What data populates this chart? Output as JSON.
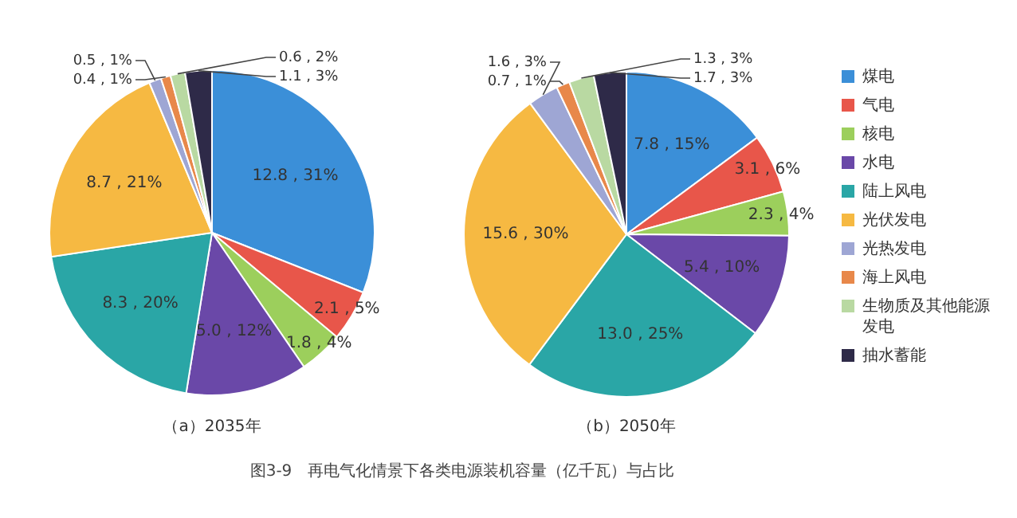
{
  "chart_data": [
    {
      "type": "pie",
      "title": "（a）2035年",
      "categories": [
        "煤电",
        "气电",
        "核电",
        "水电",
        "陆上风电",
        "光伏发电",
        "光热发电",
        "海上风电",
        "生物质及其他能源发电",
        "抽水蓄能"
      ],
      "values": [
        12.8,
        2.1,
        1.8,
        5.0,
        8.3,
        8.7,
        0.5,
        0.4,
        0.6,
        1.1
      ],
      "value_labels": [
        "12.8 , 31%",
        "2.1 , 5%",
        "1.8 , 4%",
        "5.0 , 12%",
        "8.3 , 20%",
        "8.7 , 21%",
        "0.5 , 1%",
        "0.4 , 1%",
        "0.6 , 2%",
        "1.1 , 3%"
      ],
      "colors": [
        "#3b8fd8",
        "#e8564a",
        "#9ccf5c",
        "#6a48a8",
        "#2aa6a6",
        "#f6b942",
        "#9ea6d4",
        "#e8884a",
        "#b9d9a2",
        "#2e2a48"
      ],
      "legend": "right",
      "annotations": [
        "图3-9　再电气化情景下各类电源装机容量（亿千瓦）与占比"
      ]
    },
    {
      "type": "pie",
      "title": "（b）2050年",
      "values": [
        7.8,
        3.1,
        2.3,
        5.4,
        13.0,
        15.6,
        1.6,
        0.7,
        1.3,
        1.7
      ],
      "value_labels": [
        "7.8 , 15%",
        "3.1 , 6%",
        "2.3 , 4%",
        "5.4 , 10%",
        "13.0 , 25%",
        "15.6 , 30%",
        "1.6 , 3%",
        "0.7 , 1%",
        "1.3 , 3%",
        "1.7 , 3%"
      ],
      "colors": [
        "#3b8fd8",
        "#e8564a",
        "#9ccf5c",
        "#6a48a8",
        "#2aa6a6",
        "#f6b942",
        "#9ea6d4",
        "#e8884a",
        "#b9d9a2",
        "#2e2a48"
      ]
    }
  ]
}
